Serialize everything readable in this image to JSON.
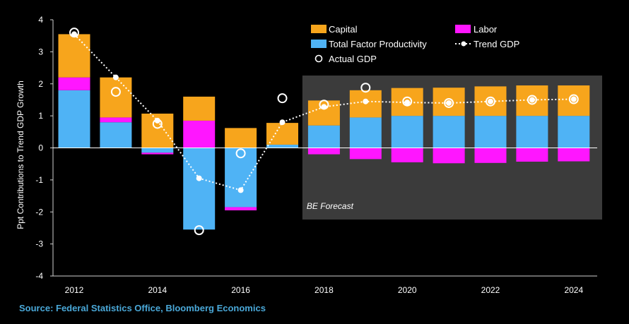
{
  "chart_data": {
    "type": "bar",
    "stacked": true,
    "ylabel": "Ppt Contributions to Trend GDP Growth",
    "ylim": [
      -4,
      4
    ],
    "yticks": [
      -4,
      -3,
      -2,
      -1,
      0,
      1,
      2,
      3,
      4
    ],
    "categories": [
      2012,
      2013,
      2014,
      2015,
      2016,
      2017,
      2018,
      2019,
      2020,
      2021,
      2022,
      2023,
      2024
    ],
    "xtick_labels": [
      "2012",
      "2014",
      "2016",
      "2018",
      "2020",
      "2022",
      "2024"
    ],
    "series": [
      {
        "name": "Total Factor Productivity",
        "color": "#4fb3f5",
        "values": [
          1.8,
          0.8,
          -0.15,
          -2.55,
          -1.85,
          0.1,
          0.7,
          0.95,
          1.0,
          1.0,
          1.0,
          1.0,
          1.0
        ]
      },
      {
        "name": "Labor",
        "color": "#ff16ff",
        "values": [
          0.4,
          0.15,
          -0.05,
          0.85,
          -0.1,
          0.0,
          -0.2,
          -0.35,
          -0.45,
          -0.48,
          -0.47,
          -0.43,
          -0.42
        ]
      },
      {
        "name": "Capital",
        "color": "#f7a51c",
        "values": [
          1.35,
          1.25,
          1.07,
          0.75,
          0.62,
          0.68,
          0.78,
          0.85,
          0.87,
          0.88,
          0.92,
          0.95,
          0.95
        ]
      }
    ],
    "trend_gdp": {
      "name": "Trend GDP",
      "values": [
        3.55,
        2.2,
        0.85,
        -0.95,
        -1.32,
        0.8,
        1.28,
        1.45,
        1.42,
        1.4,
        1.45,
        1.5,
        1.52
      ]
    },
    "actual_gdp": {
      "name": "Actual GDP",
      "values": [
        3.6,
        1.75,
        0.75,
        -2.57,
        -0.17,
        1.55,
        1.35,
        1.88,
        1.45,
        1.4,
        1.45,
        1.5,
        1.52
      ]
    },
    "forecast_label": "BE Forecast",
    "forecast_start": 2018
  },
  "source": "Source: Federal Statistics Office, Bloomberg Economics"
}
